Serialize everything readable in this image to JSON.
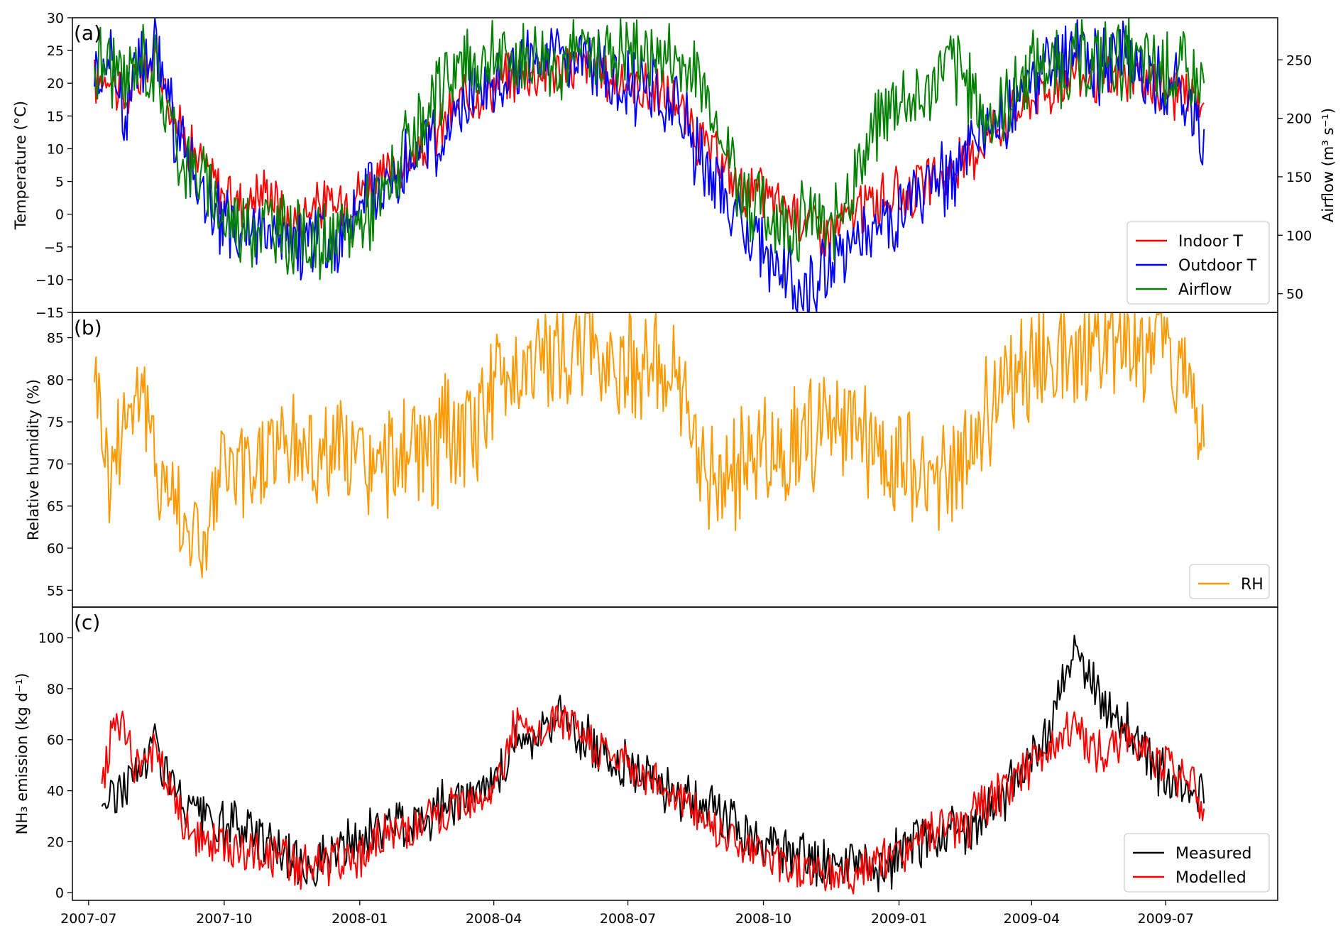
{
  "chart_data": [
    {
      "panel_label": "(a)",
      "type": "line",
      "ylabel": "Temperature (°C)",
      "ylim": [
        -15,
        30
      ],
      "yticks": [
        30,
        25,
        20,
        15,
        10,
        5,
        0,
        -5,
        -10,
        -15
      ],
      "y2label": "Airflow (m³ s⁻¹)",
      "y2ticks": [
        250,
        200,
        150,
        100,
        50
      ],
      "legend": "lower-right",
      "series": [
        {
          "name": "Indoor T",
          "color": "#ff0000",
          "axis": "left",
          "x": [
            "2007-07-05",
            "2007-07-15",
            "2007-07-25",
            "2007-08-05",
            "2007-08-15",
            "2007-09-01",
            "2007-09-15",
            "2007-10-01",
            "2007-10-15",
            "2007-11-01",
            "2007-11-15",
            "2007-12-01",
            "2007-12-15",
            "2008-01-01",
            "2008-01-15",
            "2008-02-01",
            "2008-02-15",
            "2008-03-01",
            "2008-03-15",
            "2008-04-01",
            "2008-04-15",
            "2008-05-01",
            "2008-05-15",
            "2008-06-01",
            "2008-06-15",
            "2008-07-01",
            "2008-07-15",
            "2008-08-01",
            "2008-08-15",
            "2008-09-01",
            "2008-09-15",
            "2008-10-01",
            "2008-10-15",
            "2008-11-01",
            "2008-11-15",
            "2008-12-01",
            "2008-12-15",
            "2009-01-01",
            "2009-01-15",
            "2009-02-01",
            "2009-02-15",
            "2009-03-01",
            "2009-03-15",
            "2009-04-01",
            "2009-04-15",
            "2009-05-01",
            "2009-05-15",
            "2009-06-01",
            "2009-06-15",
            "2009-07-01",
            "2009-07-15",
            "2009-07-27"
          ],
          "y": [
            20,
            22,
            17,
            21,
            24,
            13,
            8,
            3,
            2,
            4,
            -2,
            2,
            1,
            4,
            5,
            8,
            10,
            15,
            18,
            20,
            21,
            22,
            22,
            23,
            21,
            20,
            19,
            18,
            12,
            8,
            4,
            3,
            1,
            -1,
            -3,
            0,
            2,
            3,
            4,
            6,
            8,
            12,
            15,
            18,
            19,
            22,
            20,
            21,
            20,
            19,
            18,
            17
          ]
        },
        {
          "name": "Outdoor T",
          "color": "#0000ff",
          "axis": "left",
          "x": [
            "2007-07-05",
            "2007-07-15",
            "2007-07-25",
            "2007-08-05",
            "2007-08-15",
            "2007-09-01",
            "2007-09-15",
            "2007-10-01",
            "2007-10-15",
            "2007-11-01",
            "2007-11-15",
            "2007-12-01",
            "2007-12-15",
            "2008-01-01",
            "2008-01-15",
            "2008-02-01",
            "2008-02-15",
            "2008-03-01",
            "2008-03-15",
            "2008-04-01",
            "2008-04-15",
            "2008-05-01",
            "2008-05-15",
            "2008-06-01",
            "2008-06-15",
            "2008-07-01",
            "2008-07-15",
            "2008-08-01",
            "2008-08-15",
            "2008-09-01",
            "2008-09-15",
            "2008-10-01",
            "2008-10-15",
            "2008-11-01",
            "2008-11-15",
            "2008-12-01",
            "2008-12-15",
            "2009-01-01",
            "2009-01-15",
            "2009-02-01",
            "2009-02-15",
            "2009-03-01",
            "2009-03-15",
            "2009-04-01",
            "2009-04-15",
            "2009-05-01",
            "2009-05-15",
            "2009-06-01",
            "2009-06-15",
            "2009-07-01",
            "2009-07-15",
            "2009-07-27"
          ],
          "y": [
            22,
            24,
            16,
            23,
            26,
            10,
            4,
            -2,
            -4,
            -1,
            -6,
            -3,
            -5,
            2,
            4,
            7,
            9,
            15,
            17,
            21,
            22,
            23,
            24,
            25,
            21,
            20,
            19,
            17,
            10,
            5,
            -2,
            -6,
            -9,
            -12,
            -8,
            -4,
            -2,
            0,
            3,
            5,
            8,
            12,
            15,
            20,
            22,
            26,
            22,
            24,
            22,
            20,
            18,
            13
          ]
        },
        {
          "name": "Airflow",
          "color": "#008000",
          "axis": "right",
          "x": [
            "2007-07-05",
            "2007-07-15",
            "2007-07-25",
            "2007-08-05",
            "2007-08-15",
            "2007-09-01",
            "2007-09-15",
            "2007-10-01",
            "2007-10-15",
            "2007-11-01",
            "2007-11-15",
            "2007-12-01",
            "2007-12-15",
            "2008-01-01",
            "2008-01-15",
            "2008-02-01",
            "2008-02-15",
            "2008-03-01",
            "2008-03-15",
            "2008-04-01",
            "2008-04-15",
            "2008-05-01",
            "2008-05-15",
            "2008-06-01",
            "2008-06-15",
            "2008-07-01",
            "2008-07-15",
            "2008-08-01",
            "2008-08-15",
            "2008-09-01",
            "2008-09-15",
            "2008-10-01",
            "2008-10-15",
            "2008-11-01",
            "2008-11-15",
            "2008-12-01",
            "2008-12-15",
            "2009-01-01",
            "2009-01-15",
            "2009-02-01",
            "2009-02-15",
            "2009-03-01",
            "2009-03-15",
            "2009-04-01",
            "2009-04-15",
            "2009-05-01",
            "2009-05-15",
            "2009-06-01",
            "2009-06-15",
            "2009-07-01",
            "2009-07-15",
            "2009-07-27"
          ],
          "y": [
            245,
            250,
            225,
            255,
            240,
            170,
            150,
            115,
            110,
            110,
            100,
            95,
            90,
            115,
            130,
            170,
            190,
            240,
            245,
            250,
            250,
            255,
            250,
            255,
            255,
            260,
            255,
            250,
            240,
            200,
            140,
            120,
            110,
            115,
            100,
            150,
            190,
            220,
            210,
            250,
            230,
            200,
            210,
            250,
            245,
            245,
            250,
            250,
            245,
            240,
            235,
            230
          ]
        }
      ]
    },
    {
      "panel_label": "(b)",
      "type": "line",
      "ylabel": "Relative humidity  (%)",
      "ylim": [
        53,
        88
      ],
      "yticks": [
        85,
        80,
        75,
        70,
        65,
        60,
        55
      ],
      "legend": "lower-right",
      "series": [
        {
          "name": "RH",
          "color": "#ff9900",
          "x": [
            "2007-07-05",
            "2007-07-15",
            "2007-07-25",
            "2007-08-05",
            "2007-08-15",
            "2007-09-01",
            "2007-09-15",
            "2007-10-01",
            "2007-10-15",
            "2007-11-01",
            "2007-11-15",
            "2007-12-01",
            "2007-12-15",
            "2008-01-01",
            "2008-01-15",
            "2008-02-01",
            "2008-02-15",
            "2008-03-01",
            "2008-03-15",
            "2008-04-01",
            "2008-04-15",
            "2008-05-01",
            "2008-05-15",
            "2008-06-01",
            "2008-06-15",
            "2008-07-01",
            "2008-07-15",
            "2008-08-01",
            "2008-08-15",
            "2008-09-01",
            "2008-09-15",
            "2008-10-01",
            "2008-10-15",
            "2008-11-01",
            "2008-11-15",
            "2008-12-01",
            "2008-12-15",
            "2009-01-01",
            "2009-01-15",
            "2009-02-01",
            "2009-02-15",
            "2009-03-01",
            "2009-03-15",
            "2009-04-01",
            "2009-04-15",
            "2009-05-01",
            "2009-05-15",
            "2009-06-01",
            "2009-06-15",
            "2009-07-01",
            "2009-07-15",
            "2009-07-27"
          ],
          "y": [
            83,
            68,
            76,
            80,
            70,
            65,
            60,
            70,
            68,
            72,
            73,
            71,
            72,
            70,
            69,
            72,
            70,
            74,
            73,
            79,
            82,
            82,
            83,
            84,
            83,
            82,
            82,
            80,
            72,
            68,
            69,
            72,
            71,
            74,
            73,
            74,
            72,
            70,
            69,
            68,
            72,
            76,
            80,
            82,
            83,
            84,
            84,
            85,
            84,
            84,
            83,
            72
          ]
        }
      ]
    },
    {
      "panel_label": "(c)",
      "type": "line",
      "ylabel": "NH₃ emission (kg d⁻¹)",
      "ylim": [
        -3,
        112
      ],
      "yticks": [
        100,
        80,
        60,
        40,
        20,
        0
      ],
      "xlabel": "",
      "xticks": [
        "2007-07",
        "2007-10",
        "2008-01",
        "2008-04",
        "2008-07",
        "2008-10",
        "2009-01",
        "2009-04",
        "2009-07"
      ],
      "legend": "lower-right",
      "series": [
        {
          "name": "Measured",
          "color": "#000000",
          "x": [
            "2007-07-10",
            "2007-07-20",
            "2007-08-01",
            "2007-08-15",
            "2007-09-01",
            "2007-09-15",
            "2007-10-01",
            "2007-10-15",
            "2007-11-01",
            "2007-11-15",
            "2007-12-01",
            "2007-12-15",
            "2008-01-01",
            "2008-01-15",
            "2008-02-01",
            "2008-02-15",
            "2008-03-01",
            "2008-03-15",
            "2008-04-01",
            "2008-04-15",
            "2008-05-01",
            "2008-05-15",
            "2008-06-01",
            "2008-06-15",
            "2008-07-01",
            "2008-07-15",
            "2008-08-01",
            "2008-08-15",
            "2008-09-01",
            "2008-09-15",
            "2008-10-01",
            "2008-10-15",
            "2008-11-01",
            "2008-11-15",
            "2008-12-01",
            "2008-12-15",
            "2009-01-01",
            "2009-01-15",
            "2009-02-01",
            "2009-02-15",
            "2009-03-01",
            "2009-03-15",
            "2009-04-01",
            "2009-04-15",
            "2009-04-25",
            "2009-07-01",
            "2009-07-15",
            "2009-07-27"
          ],
          "y": [
            35,
            40,
            45,
            60,
            35,
            30,
            25,
            25,
            22,
            12,
            12,
            15,
            20,
            25,
            28,
            30,
            35,
            40,
            40,
            60,
            62,
            70,
            60,
            55,
            50,
            45,
            40,
            35,
            30,
            25,
            20,
            15,
            12,
            10,
            10,
            8,
            15,
            20,
            25,
            20,
            30,
            40,
            55,
            65,
            95,
            45,
            45,
            35
          ]
        },
        {
          "name": "Modelled",
          "color": "#ff0000",
          "x": [
            "2007-07-10",
            "2007-07-20",
            "2007-08-01",
            "2007-08-15",
            "2007-09-01",
            "2007-09-15",
            "2007-10-01",
            "2007-10-15",
            "2007-11-01",
            "2007-11-15",
            "2007-12-01",
            "2007-12-15",
            "2008-01-01",
            "2008-01-15",
            "2008-02-01",
            "2008-02-15",
            "2008-03-01",
            "2008-03-15",
            "2008-04-01",
            "2008-04-15",
            "2008-05-01",
            "2008-05-15",
            "2008-06-01",
            "2008-06-15",
            "2008-07-01",
            "2008-07-15",
            "2008-08-01",
            "2008-08-15",
            "2008-09-01",
            "2008-09-15",
            "2008-10-01",
            "2008-10-15",
            "2008-11-01",
            "2008-11-15",
            "2008-12-01",
            "2008-12-15",
            "2009-01-01",
            "2009-01-15",
            "2009-02-01",
            "2009-02-15",
            "2009-03-01",
            "2009-03-15",
            "2009-04-01",
            "2009-04-15",
            "2009-05-01",
            "2009-05-15",
            "2009-06-01",
            "2009-06-15",
            "2009-07-01",
            "2009-07-15",
            "2009-07-27"
          ],
          "y": [
            40,
            70,
            50,
            55,
            30,
            20,
            18,
            15,
            15,
            12,
            10,
            12,
            15,
            20,
            25,
            28,
            30,
            38,
            40,
            65,
            60,
            70,
            60,
            55,
            50,
            45,
            40,
            32,
            25,
            20,
            15,
            10,
            10,
            8,
            8,
            10,
            15,
            20,
            25,
            25,
            35,
            40,
            50,
            60,
            65,
            55,
            60,
            60,
            50,
            45,
            33
          ]
        }
      ]
    }
  ]
}
